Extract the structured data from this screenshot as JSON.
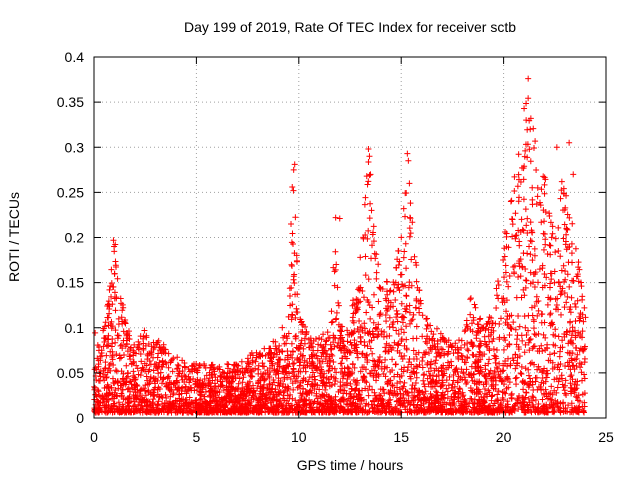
{
  "chart_data": {
    "type": "scatter",
    "title": "Day 199 of 2019, Rate Of TEC Index for receiver sctb",
    "xlabel": "GPS time / hours",
    "ylabel": "ROTI / TECUs",
    "xlim": [
      0,
      25
    ],
    "ylim": [
      0,
      0.4
    ],
    "xticks": [
      0,
      5,
      10,
      15,
      20,
      25
    ],
    "xtick_labels": [
      "0",
      "5",
      "10",
      "15",
      "20",
      "25"
    ],
    "yticks": [
      0,
      0.05,
      0.1,
      0.15,
      0.2,
      0.25,
      0.3,
      0.35,
      0.4
    ],
    "ytick_labels": [
      "0",
      "0.05",
      "0.1",
      "0.15",
      "0.2",
      "0.25",
      "0.3",
      "0.35",
      "0.4"
    ],
    "grid": true,
    "marker": "+",
    "marker_color": "#ff0000",
    "series": [
      {
        "name": "ROTI",
        "envelope": [
          [
            0,
            0.1
          ],
          [
            0.3,
            0.08
          ],
          [
            0.7,
            0.14
          ],
          [
            1.0,
            0.2
          ],
          [
            1.5,
            0.11
          ],
          [
            2.0,
            0.08
          ],
          [
            2.5,
            0.1
          ],
          [
            3.0,
            0.09
          ],
          [
            3.5,
            0.08
          ],
          [
            4.0,
            0.07
          ],
          [
            4.5,
            0.06
          ],
          [
            5.0,
            0.06
          ],
          [
            5.5,
            0.06
          ],
          [
            6.0,
            0.06
          ],
          [
            6.5,
            0.06
          ],
          [
            7.0,
            0.06
          ],
          [
            7.5,
            0.07
          ],
          [
            8.0,
            0.08
          ],
          [
            8.5,
            0.08
          ],
          [
            9.0,
            0.09
          ],
          [
            9.5,
            0.12
          ],
          [
            9.75,
            0.28
          ],
          [
            10.0,
            0.12
          ],
          [
            10.5,
            0.09
          ],
          [
            11.0,
            0.09
          ],
          [
            11.5,
            0.1
          ],
          [
            11.8,
            0.22
          ],
          [
            12.0,
            0.1
          ],
          [
            12.5,
            0.12
          ],
          [
            13.0,
            0.16
          ],
          [
            13.4,
            0.3
          ],
          [
            13.7,
            0.2
          ],
          [
            14.0,
            0.16
          ],
          [
            14.5,
            0.15
          ],
          [
            15.0,
            0.2
          ],
          [
            15.3,
            0.29
          ],
          [
            15.6,
            0.2
          ],
          [
            16.0,
            0.13
          ],
          [
            16.5,
            0.1
          ],
          [
            17.0,
            0.1
          ],
          [
            17.5,
            0.08
          ],
          [
            18.0,
            0.09
          ],
          [
            18.5,
            0.15
          ],
          [
            19.0,
            0.1
          ],
          [
            19.5,
            0.12
          ],
          [
            20.0,
            0.2
          ],
          [
            20.5,
            0.27
          ],
          [
            21.0,
            0.34
          ],
          [
            21.2,
            0.38
          ],
          [
            21.6,
            0.3
          ],
          [
            22.0,
            0.28
          ],
          [
            22.5,
            0.2
          ],
          [
            23.0,
            0.3
          ],
          [
            23.5,
            0.2
          ],
          [
            24.0,
            0.16
          ]
        ],
        "outliers": [
          [
            0.95,
            0.197
          ],
          [
            0.98,
            0.19
          ],
          [
            9.62,
            0.215
          ],
          [
            9.68,
            0.256
          ],
          [
            9.75,
            0.275
          ],
          [
            9.8,
            0.281
          ],
          [
            11.8,
            0.222
          ],
          [
            12.0,
            0.221
          ],
          [
            13.0,
            0.178
          ],
          [
            13.4,
            0.298
          ],
          [
            13.45,
            0.29
          ],
          [
            13.5,
            0.27
          ],
          [
            15.3,
            0.293
          ],
          [
            15.35,
            0.285
          ],
          [
            15.4,
            0.26
          ],
          [
            21.0,
            0.343
          ],
          [
            21.1,
            0.33
          ],
          [
            21.2,
            0.376
          ],
          [
            21.3,
            0.32
          ],
          [
            22.6,
            0.3
          ],
          [
            23.2,
            0.305
          ],
          [
            23.4,
            0.27
          ]
        ]
      }
    ]
  }
}
